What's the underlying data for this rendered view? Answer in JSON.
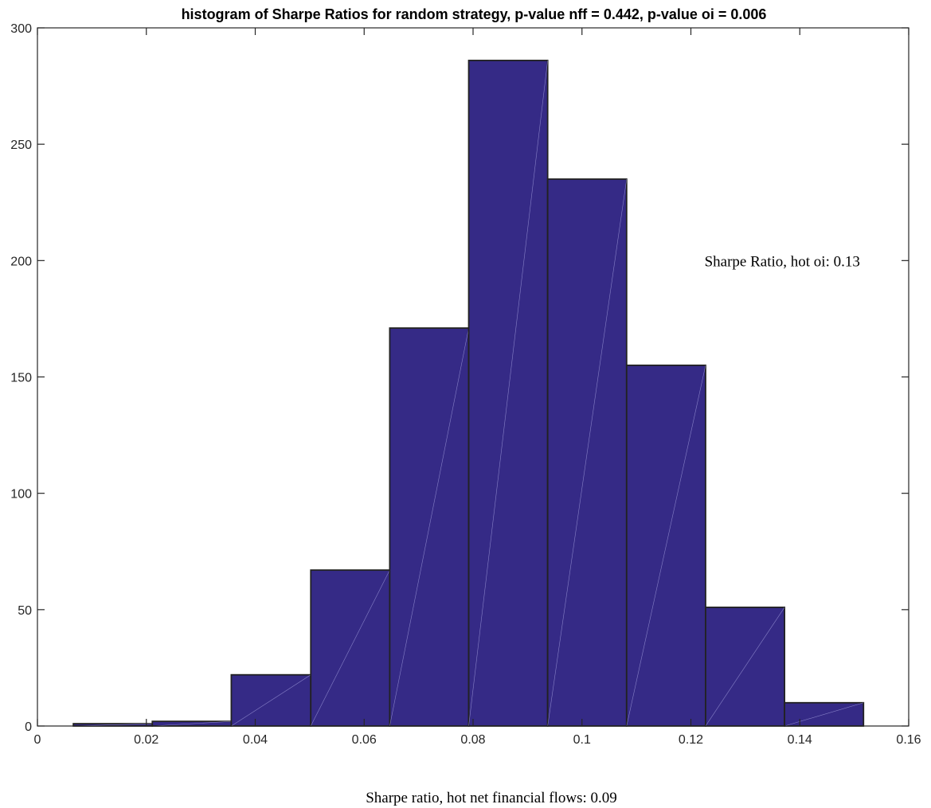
{
  "chart_data": {
    "type": "bar",
    "title": "histogram of Sharpe Ratios for random strategy, p-value nff = 0.442, p-value oi = 0.006",
    "xlabel": "Sharpe ratio, hot net financial flows: 0.09",
    "ylabel": "",
    "xlim": [
      0,
      0.16
    ],
    "ylim": [
      0,
      300
    ],
    "xticks": [
      0,
      0.02,
      0.04,
      0.06,
      0.08,
      0.1,
      0.12,
      0.14,
      0.16
    ],
    "xtick_labels": [
      "0",
      "0.02",
      "0.04",
      "0.06",
      "0.08",
      "0.1",
      "0.12",
      "0.14",
      "0.16"
    ],
    "yticks": [
      0,
      50,
      100,
      150,
      200,
      250,
      300
    ],
    "ytick_labels": [
      "0",
      "50",
      "100",
      "150",
      "200",
      "250",
      "300"
    ],
    "bin_edges": [
      0.0066,
      0.0211,
      0.0356,
      0.0502,
      0.0647,
      0.0792,
      0.0937,
      0.1082,
      0.1227,
      0.1372,
      0.1517
    ],
    "values": [
      1,
      2,
      22,
      67,
      171,
      286,
      235,
      155,
      51,
      10
    ],
    "annotations": [
      {
        "text": "Sharpe Ratio, hot oi: 0.13",
        "x": 0.1225,
        "y": 200
      }
    ],
    "bar_color": "#352a86",
    "edge_color": "#222222",
    "grid": false,
    "legend": "none"
  }
}
